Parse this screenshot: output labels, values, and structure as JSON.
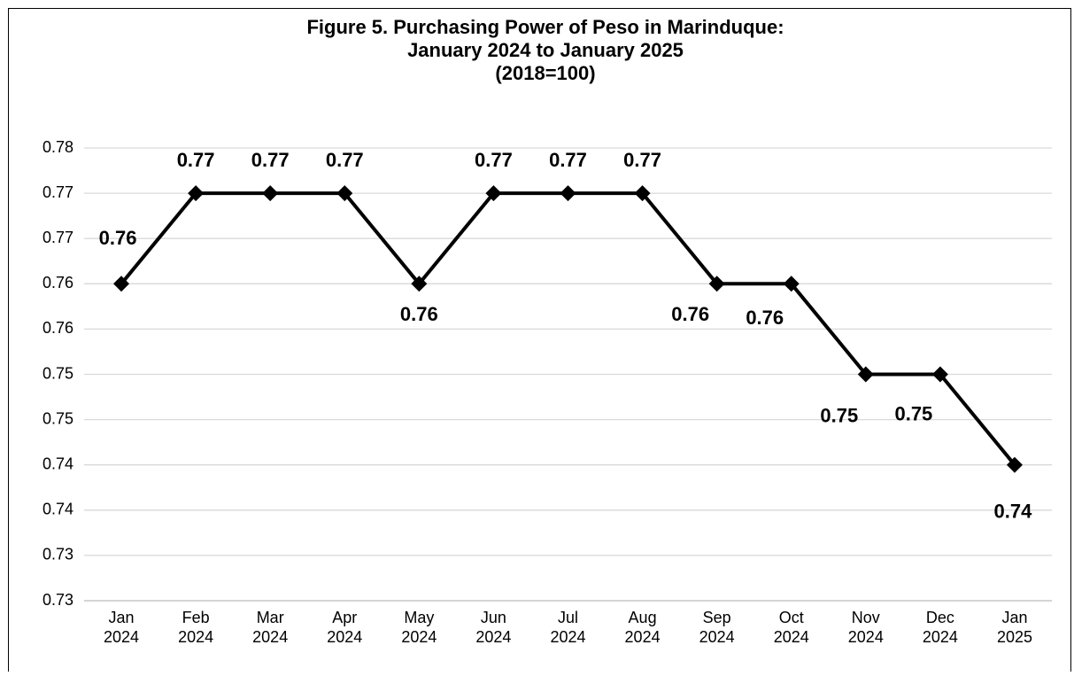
{
  "chart_data": {
    "type": "line",
    "title": [
      "Figure 5. Purchasing Power of Peso in Marinduque:",
      "January 2024 to January 2025",
      "(2018=100)"
    ],
    "categories": [
      "Jan 2024",
      "Feb 2024",
      "Mar 2024",
      "Apr 2024",
      "May 2024",
      "Jun 2024",
      "Jul 2024",
      "Aug 2024",
      "Sep 2024",
      "Oct 2024",
      "Nov 2024",
      "Dec 2024",
      "Jan 2025"
    ],
    "series": [
      {
        "name": "Purchasing Power of Peso",
        "color": "#000000",
        "values": [
          0.765,
          0.775,
          0.775,
          0.775,
          0.765,
          0.775,
          0.775,
          0.775,
          0.765,
          0.765,
          0.755,
          0.755,
          0.745
        ],
        "value_labels": [
          "0.76",
          "0.77",
          "0.77",
          "0.77",
          "0.76",
          "0.77",
          "0.77",
          "0.77",
          "0.76",
          "0.76",
          "0.75",
          "0.75",
          "0.74"
        ]
      }
    ],
    "ylim": [
      0.73,
      0.78
    ],
    "yticks": [
      0.73,
      {
        "value": 0.735,
        "label": "0.73"
      },
      0.74,
      {
        "value": 0.745,
        "label": "0.74"
      },
      0.75,
      {
        "value": 0.755,
        "label": "0.75"
      },
      0.76,
      {
        "value": 0.765,
        "label": "0.76"
      },
      0.77,
      {
        "value": 0.775,
        "label": "0.77"
      },
      0.78
    ],
    "grid": true
  }
}
